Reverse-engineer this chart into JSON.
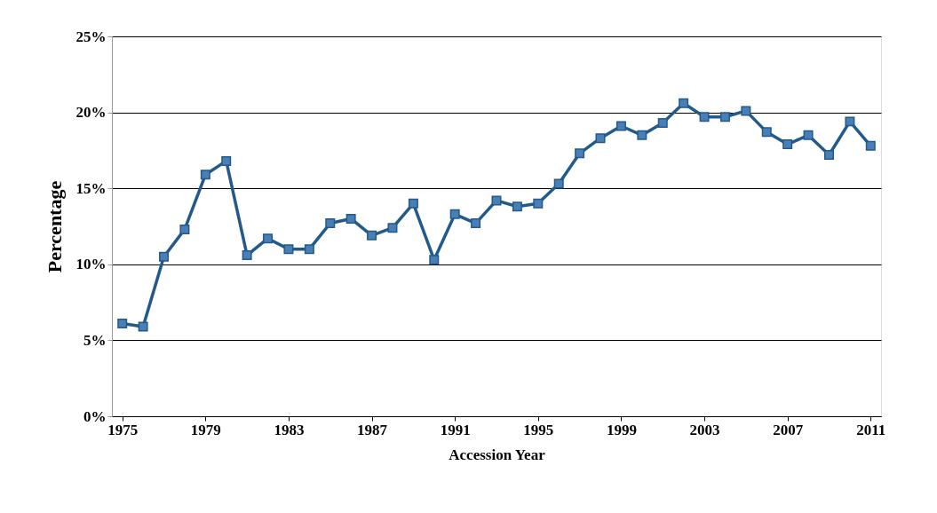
{
  "chart_data": {
    "type": "line",
    "xlabel": "Accession Year",
    "ylabel": "Percentage",
    "x": [
      1975,
      1976,
      1977,
      1978,
      1979,
      1980,
      1981,
      1982,
      1983,
      1984,
      1985,
      1986,
      1987,
      1988,
      1989,
      1990,
      1991,
      1992,
      1993,
      1994,
      1995,
      1996,
      1997,
      1998,
      1999,
      2000,
      2001,
      2002,
      2003,
      2004,
      2005,
      2006,
      2007,
      2008,
      2009,
      2010,
      2011
    ],
    "series": [
      {
        "color": "#235a8c",
        "values": [
          6.1,
          5.9,
          10.5,
          12.3,
          15.9,
          16.8,
          10.6,
          11.7,
          11.0,
          11.0,
          12.7,
          13.0,
          11.9,
          12.4,
          14.0,
          10.3,
          13.3,
          12.7,
          14.2,
          13.8,
          14.0,
          15.3,
          17.3,
          18.3,
          19.1,
          18.5,
          19.3,
          20.6,
          19.7,
          19.7,
          20.1,
          18.7,
          17.9,
          18.5,
          17.2,
          19.4,
          17.8
        ]
      }
    ],
    "xlim": [
      1974.5,
      2011.5
    ],
    "xticks": [
      1975,
      1979,
      1983,
      1987,
      1991,
      1995,
      1999,
      2003,
      2007,
      2011
    ],
    "ylim": [
      0,
      25
    ],
    "yticks": [
      {
        "value": 0,
        "label": "0%"
      },
      {
        "value": 5,
        "label": "5%"
      },
      {
        "value": 10,
        "label": "10%"
      },
      {
        "value": 15,
        "label": "15%"
      },
      {
        "value": 20,
        "label": "20%"
      },
      {
        "value": 25,
        "label": "25%"
      }
    ],
    "grid": "y",
    "marker": "square",
    "line_style": "solid"
  }
}
